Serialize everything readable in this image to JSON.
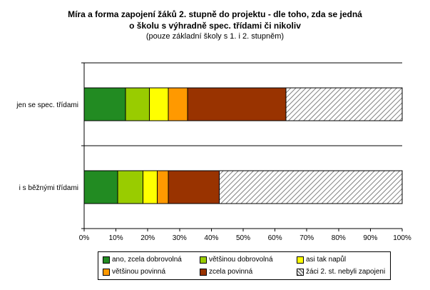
{
  "chart_data": {
    "type": "bar",
    "orientation": "horizontal",
    "stacked": true,
    "title_line1": "Míra a forma zapojení žáků 2. stupně do projektu - dle toho, zda se jedná",
    "title_line2": "o školu s výhradně spec. třídami či nikoliv",
    "subtitle": "(pouze základní školy s 1. i 2. stupněm)",
    "categories": [
      "jen se spec. třídami",
      "i s běžnými třídami"
    ],
    "xlim": [
      0,
      100
    ],
    "xticks": [
      "0%",
      "10%",
      "20%",
      "30%",
      "40%",
      "50%",
      "60%",
      "70%",
      "80%",
      "90%",
      "100%"
    ],
    "legend_position": "bottom",
    "series": [
      {
        "name": "ano, zcela dobrovolná",
        "color": "#228B22",
        "values": [
          13,
          10.5
        ]
      },
      {
        "name": "většinou dobrovolná",
        "color": "#99CC00",
        "values": [
          7.5,
          8
        ]
      },
      {
        "name": "asi tak napůl",
        "color": "#FFFF00",
        "values": [
          6,
          4.5
        ]
      },
      {
        "name": "většinou povinná",
        "color": "#FF9900",
        "values": [
          6,
          3.5
        ]
      },
      {
        "name": "zcela povinná",
        "color": "#993300",
        "values": [
          31,
          16
        ]
      },
      {
        "name": "žáci 2. st. nebyli zapojeni",
        "color": "hatch",
        "values": [
          36.5,
          57.5
        ]
      }
    ]
  }
}
